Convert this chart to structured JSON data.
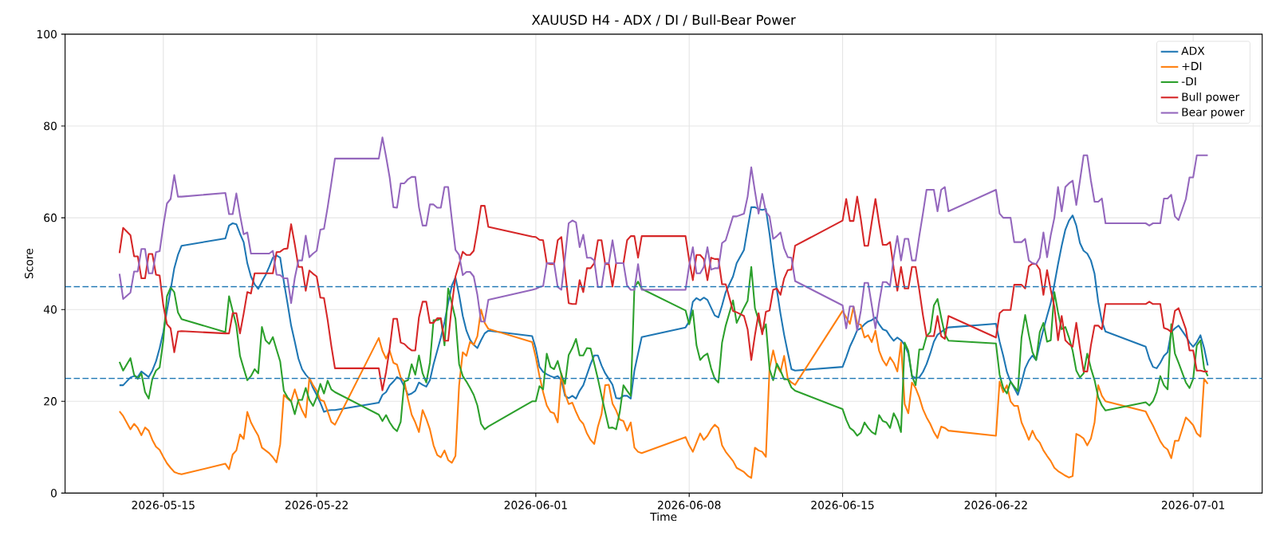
{
  "chart_data": {
    "type": "line",
    "title": "XAUUSD H4 - ADX / DI / Bull-Bear Power",
    "xlabel": "Time",
    "ylabel": "Score",
    "x": [
      "2026-05-13T00:00",
      "2026-05-13T04:00",
      "2026-05-13T12:00",
      "2026-05-13T16:00",
      "2026-05-13T20:00",
      "2026-05-14T00:00",
      "2026-05-14T04:00",
      "2026-05-14T08:00",
      "2026-05-14T12:00",
      "2026-05-14T16:00",
      "2026-05-14T20:00",
      "2026-05-15T00:00",
      "2026-05-15T04:00",
      "2026-05-15T08:00",
      "2026-05-15T12:00",
      "2026-05-15T16:00",
      "2026-05-15T20:00",
      "2026-05-17T20:00",
      "2026-05-18T00:00",
      "2026-05-18T04:00",
      "2026-05-18T08:00",
      "2026-05-18T12:00",
      "2026-05-18T16:00",
      "2026-05-18T20:00",
      "2026-05-19T00:00",
      "2026-05-19T04:00",
      "2026-05-19T08:00",
      "2026-05-19T12:00",
      "2026-05-19T16:00",
      "2026-05-19T20:00",
      "2026-05-20T00:00",
      "2026-05-20T04:00",
      "2026-05-20T08:00",
      "2026-05-20T12:00",
      "2026-05-20T16:00",
      "2026-05-20T20:00",
      "2026-05-21T00:00",
      "2026-05-21T04:00",
      "2026-05-21T08:00",
      "2026-05-21T12:00",
      "2026-05-21T16:00",
      "2026-05-21T20:00",
      "2026-05-22T00:00",
      "2026-05-22T04:00",
      "2026-05-22T08:00",
      "2026-05-22T12:00",
      "2026-05-22T16:00",
      "2026-05-22T20:00",
      "2026-05-24T20:00",
      "2026-05-25T00:00",
      "2026-05-25T04:00",
      "2026-05-25T08:00",
      "2026-05-25T12:00",
      "2026-05-25T16:00",
      "2026-05-25T20:00",
      "2026-05-26T00:00",
      "2026-05-26T04:00",
      "2026-05-26T08:00",
      "2026-05-26T12:00",
      "2026-05-26T16:00",
      "2026-05-26T20:00",
      "2026-05-27T00:00",
      "2026-05-27T04:00",
      "2026-05-27T08:00",
      "2026-05-27T12:00",
      "2026-05-27T16:00",
      "2026-05-27T20:00",
      "2026-05-28T00:00",
      "2026-05-28T04:00",
      "2026-05-28T08:00",
      "2026-05-28T12:00",
      "2026-05-28T16:00",
      "2026-05-28T20:00",
      "2026-05-29T00:00",
      "2026-05-29T04:00",
      "2026-05-29T08:00",
      "2026-05-29T12:00",
      "2026-05-29T16:00",
      "2026-05-29T20:00",
      "2026-05-31T20:00",
      "2026-06-01T00:00",
      "2026-06-01T04:00",
      "2026-06-01T08:00",
      "2026-06-01T12:00",
      "2026-06-01T16:00",
      "2026-06-01T20:00",
      "2026-06-02T00:00",
      "2026-06-02T04:00",
      "2026-06-02T08:00",
      "2026-06-02T12:00",
      "2026-06-02T16:00",
      "2026-06-02T20:00",
      "2026-06-03T00:00",
      "2026-06-03T04:00",
      "2026-06-03T08:00",
      "2026-06-03T12:00",
      "2026-06-03T16:00",
      "2026-06-03T20:00",
      "2026-06-04T00:00",
      "2026-06-04T04:00",
      "2026-06-04T08:00",
      "2026-06-04T12:00",
      "2026-06-04T16:00",
      "2026-06-04T20:00",
      "2026-06-05T00:00",
      "2026-06-05T04:00",
      "2026-06-05T08:00",
      "2026-06-05T12:00",
      "2026-06-05T16:00",
      "2026-06-05T20:00",
      "2026-06-07T20:00",
      "2026-06-08T00:00",
      "2026-06-08T04:00",
      "2026-06-08T08:00",
      "2026-06-08T12:00",
      "2026-06-08T16:00",
      "2026-06-08T20:00",
      "2026-06-09T00:00",
      "2026-06-09T04:00",
      "2026-06-09T08:00",
      "2026-06-09T12:00",
      "2026-06-09T16:00",
      "2026-06-10T00:00",
      "2026-06-10T04:00",
      "2026-06-10T12:00",
      "2026-06-10T16:00",
      "2026-06-10T20:00",
      "2026-06-11T00:00",
      "2026-06-11T04:00",
      "2026-06-11T08:00",
      "2026-06-11T12:00",
      "2026-06-11T16:00",
      "2026-06-11T20:00",
      "2026-06-12T00:00",
      "2026-06-12T04:00",
      "2026-06-12T08:00",
      "2026-06-12T12:00",
      "2026-06-12T16:00",
      "2026-06-12T20:00",
      "2026-06-15T00:00",
      "2026-06-15T04:00",
      "2026-06-15T08:00",
      "2026-06-15T12:00",
      "2026-06-15T16:00",
      "2026-06-15T20:00",
      "2026-06-16T00:00",
      "2026-06-16T04:00",
      "2026-06-16T08:00",
      "2026-06-16T12:00",
      "2026-06-16T16:00",
      "2026-06-16T20:00",
      "2026-06-17T00:00",
      "2026-06-17T04:00",
      "2026-06-17T08:00",
      "2026-06-17T12:00",
      "2026-06-17T16:00",
      "2026-06-17T20:00",
      "2026-06-18T00:00",
      "2026-06-18T04:00",
      "2026-06-18T08:00",
      "2026-06-18T12:00",
      "2026-06-18T16:00",
      "2026-06-18T20:00",
      "2026-06-19T00:00",
      "2026-06-19T04:00",
      "2026-06-19T08:00",
      "2026-06-19T12:00",
      "2026-06-19T16:00",
      "2026-06-19T20:00",
      "2026-06-22T00:00",
      "2026-06-22T04:00",
      "2026-06-22T08:00",
      "2026-06-22T12:00",
      "2026-06-22T16:00",
      "2026-06-22T20:00",
      "2026-06-23T00:00",
      "2026-06-23T04:00",
      "2026-06-23T08:00",
      "2026-06-23T12:00",
      "2026-06-23T16:00",
      "2026-06-23T20:00",
      "2026-06-24T00:00",
      "2026-06-24T04:00",
      "2026-06-24T08:00",
      "2026-06-24T12:00",
      "2026-06-24T16:00",
      "2026-06-24T20:00",
      "2026-06-25T00:00",
      "2026-06-25T04:00",
      "2026-06-25T08:00",
      "2026-06-25T12:00",
      "2026-06-25T16:00",
      "2026-06-25T20:00",
      "2026-06-26T00:00",
      "2026-06-26T04:00",
      "2026-06-26T08:00",
      "2026-06-26T12:00",
      "2026-06-26T16:00",
      "2026-06-26T20:00",
      "2026-06-27T00:00",
      "2026-06-28T20:00",
      "2026-06-29T00:00",
      "2026-06-29T04:00",
      "2026-06-29T08:00",
      "2026-06-29T12:00",
      "2026-06-29T16:00",
      "2026-06-29T20:00",
      "2026-06-30T00:00",
      "2026-06-30T04:00",
      "2026-06-30T08:00",
      "2026-06-30T16:00",
      "2026-06-30T20:00",
      "2026-07-01T00:00",
      "2026-07-01T04:00",
      "2026-07-01T08:00",
      "2026-07-01T12:00",
      "2026-07-01T16:00"
    ],
    "series": [
      {
        "name": "ADX",
        "color": "#1f77b4",
        "values": [
          23.5,
          23.5,
          25.2,
          25.5,
          25.3,
          26.5,
          25.9,
          25.3,
          26.7,
          28.7,
          31.6,
          35.1,
          39.7,
          44.3,
          49.0,
          51.9,
          53.9,
          55.5,
          58.3,
          58.8,
          58.6,
          56.5,
          54.7,
          50.1,
          47.2,
          45.5,
          44.5,
          46.1,
          47.5,
          49.3,
          51.3,
          51.8,
          51.3,
          46.1,
          41.4,
          36.5,
          33.0,
          29.3,
          27.0,
          25.8,
          24.9,
          22.9,
          21.4,
          19.7,
          17.7,
          18.0,
          18.1,
          18.1,
          19.7,
          21.4,
          22.0,
          23.5,
          24.3,
          25.3,
          24.8,
          23.2,
          21.4,
          21.7,
          22.3,
          24.1,
          23.6,
          23.2,
          24.6,
          28.1,
          31.0,
          33.9,
          37.3,
          41.4,
          45.2,
          47.0,
          43.2,
          38.6,
          35.4,
          33.4,
          32.3,
          31.6,
          33.3,
          34.8,
          35.4,
          34.2,
          31.5,
          27.5,
          26.4,
          25.9,
          25.5,
          25.2,
          25.5,
          24.6,
          21.2,
          20.7,
          21.2,
          20.6,
          22.3,
          23.5,
          25.8,
          28.1,
          30.0,
          30.0,
          27.8,
          26.1,
          24.9,
          23.6,
          20.7,
          20.6,
          21.2,
          21.2,
          20.6,
          26.7,
          30.4,
          34.0,
          36.1,
          37.4,
          41.7,
          42.5,
          42.0,
          42.6,
          42.1,
          40.4,
          38.7,
          38.3,
          40.9,
          43.8,
          47.2,
          50.1,
          53.0,
          57.7,
          62.3,
          62.3,
          61.9,
          61.7,
          61.9,
          56.5,
          50.1,
          44.3,
          39.1,
          34.5,
          30.6,
          27.0,
          26.7,
          27.5,
          29.6,
          31.9,
          33.6,
          35.5,
          35.9,
          36.8,
          37.4,
          37.7,
          38.3,
          36.8,
          35.7,
          35.4,
          34.2,
          33.2,
          33.9,
          33.3,
          32.3,
          30.4,
          25.5,
          25.1,
          25.2,
          26.4,
          28.1,
          30.4,
          33.0,
          34.5,
          35.1,
          35.7,
          36.1,
          36.9,
          33.0,
          29.9,
          26.4,
          24.3,
          22.9,
          21.4,
          24.1,
          27.2,
          28.9,
          30.0,
          29.0,
          32.5,
          35.7,
          38.6,
          41.4,
          45.5,
          49.9,
          53.9,
          57.4,
          59.4,
          60.5,
          58.3,
          54.5,
          52.8,
          52.2,
          50.7,
          47.8,
          41.7,
          37.4,
          35.2,
          31.9,
          29.3,
          27.5,
          27.2,
          28.4,
          29.9,
          30.7,
          35.1,
          35.9,
          36.5,
          34.2,
          32.8,
          31.9,
          32.9,
          34.4,
          31.6,
          27.8
        ]
      },
      {
        "name": "+DI",
        "color": "#ff7f0e",
        "values": [
          17.8,
          16.8,
          13.9,
          15.1,
          14.2,
          12.6,
          14.3,
          13.6,
          11.6,
          10.1,
          9.4,
          7.9,
          6.5,
          5.5,
          4.6,
          4.3,
          4.1,
          6.4,
          5.2,
          8.4,
          9.3,
          12.8,
          11.8,
          17.7,
          15.4,
          13.9,
          12.5,
          9.9,
          9.3,
          8.7,
          7.8,
          6.7,
          10.6,
          21.4,
          20.6,
          20.0,
          22.6,
          20.0,
          18.0,
          16.5,
          25.1,
          23.5,
          22.3,
          20.3,
          20.0,
          17.8,
          15.5,
          14.9,
          33.8,
          31.0,
          29.3,
          31.0,
          28.4,
          28.0,
          25.2,
          24.3,
          20.5,
          17.1,
          15.4,
          13.3,
          18.1,
          16.2,
          13.9,
          10.4,
          8.3,
          7.8,
          9.3,
          7.2,
          6.6,
          8.1,
          23.5,
          30.7,
          29.9,
          33.0,
          32.3,
          34.2,
          40.0,
          37.1,
          35.8,
          32.9,
          29.6,
          25.5,
          22.0,
          19.1,
          17.7,
          17.4,
          15.4,
          26.1,
          21.7,
          19.4,
          19.7,
          17.7,
          16.0,
          15.1,
          13.0,
          11.6,
          10.7,
          14.5,
          17.2,
          23.5,
          23.6,
          19.5,
          18.0,
          16.0,
          15.7,
          13.6,
          15.4,
          9.9,
          9.0,
          8.7,
          12.2,
          10.4,
          9.0,
          11.0,
          13.0,
          11.6,
          12.5,
          13.9,
          14.9,
          14.2,
          10.4,
          9.0,
          7.0,
          5.5,
          4.6,
          3.8,
          3.3,
          9.9,
          9.3,
          9.0,
          7.9,
          27.2,
          31.1,
          27.7,
          26.4,
          29.9,
          24.9,
          24.1,
          23.6,
          39.7,
          38.3,
          36.9,
          40.6,
          36.9,
          36.7,
          33.9,
          34.4,
          32.9,
          35.4,
          31.0,
          29.0,
          27.8,
          29.6,
          28.4,
          26.5,
          32.8,
          19.4,
          17.4,
          24.1,
          22.9,
          20.9,
          18.3,
          16.5,
          15.1,
          13.3,
          12.0,
          14.5,
          14.2,
          13.6,
          12.5,
          24.3,
          22.0,
          23.5,
          20.0,
          19.0,
          19.0,
          15.4,
          13.6,
          11.6,
          13.6,
          11.9,
          11.0,
          9.3,
          8.1,
          7.0,
          5.5,
          4.8,
          4.3,
          3.8,
          3.4,
          3.7,
          12.9,
          12.5,
          11.9,
          10.4,
          11.9,
          15.4,
          23.5,
          21.2,
          20.0,
          17.8,
          16.2,
          14.7,
          13.0,
          11.3,
          10.1,
          9.5,
          7.6,
          11.4,
          11.4,
          16.5,
          15.7,
          14.8,
          13.0,
          12.3,
          24.9,
          23.8
        ]
      },
      {
        "name": "-DI",
        "color": "#2ca02c",
        "values": [
          28.6,
          26.7,
          29.4,
          25.8,
          24.9,
          26.1,
          22.0,
          20.6,
          24.9,
          26.7,
          27.4,
          33.3,
          42.9,
          44.8,
          43.8,
          39.4,
          37.9,
          35.1,
          42.9,
          39.7,
          36.5,
          29.9,
          27.2,
          24.6,
          25.5,
          27.0,
          26.1,
          36.2,
          33.3,
          32.5,
          34.0,
          31.3,
          28.7,
          22.3,
          20.9,
          20.0,
          17.2,
          20.3,
          20.3,
          22.9,
          20.3,
          19.0,
          20.9,
          23.8,
          21.7,
          24.5,
          22.6,
          22.0,
          17.1,
          15.7,
          17.0,
          15.4,
          14.2,
          13.5,
          15.5,
          24.3,
          24.6,
          28.1,
          25.8,
          30.0,
          26.1,
          24.1,
          28.4,
          37.7,
          37.7,
          38.0,
          32.2,
          44.6,
          41.4,
          38.0,
          28.1,
          25.5,
          24.3,
          22.9,
          21.4,
          19.1,
          15.1,
          13.9,
          14.5,
          20.0,
          20.0,
          23.3,
          22.6,
          30.4,
          27.5,
          27.0,
          28.8,
          25.8,
          23.8,
          30.1,
          31.6,
          33.6,
          30.0,
          30.0,
          31.6,
          31.5,
          28.2,
          24.9,
          21.2,
          17.7,
          14.2,
          14.3,
          13.9,
          17.7,
          23.5,
          22.3,
          21.2,
          44.8,
          46.1,
          44.5,
          39.8,
          36.8,
          39.8,
          32.2,
          29.0,
          29.9,
          30.4,
          27.2,
          24.9,
          24.1,
          32.8,
          36.5,
          42.0,
          37.1,
          40.4,
          41.9,
          49.3,
          40.3,
          37.7,
          35.1,
          36.8,
          27.0,
          24.6,
          28.2,
          26.7,
          24.8,
          24.8,
          23.0,
          22.3,
          18.3,
          16.0,
          14.2,
          13.6,
          12.5,
          13.2,
          15.4,
          14.2,
          13.3,
          12.8,
          17.0,
          15.7,
          15.4,
          14.2,
          17.4,
          15.9,
          13.3,
          32.8,
          31.0,
          25.5,
          23.5,
          31.3,
          31.3,
          34.2,
          35.1,
          40.9,
          42.3,
          38.3,
          34.6,
          33.2,
          32.6,
          25.8,
          22.9,
          21.7,
          24.3,
          23.2,
          22.2,
          33.9,
          38.8,
          34.5,
          30.7,
          29.0,
          35.1,
          37.1,
          33.0,
          33.3,
          43.8,
          39.4,
          35.7,
          36.2,
          33.9,
          31.0,
          26.7,
          25.2,
          26.1,
          30.4,
          27.2,
          24.6,
          20.9,
          19.1,
          18.0,
          19.8,
          19.1,
          20.0,
          22.0,
          25.5,
          23.5,
          22.6,
          36.8,
          30.4,
          28.4,
          24.1,
          22.9,
          24.9,
          32.2,
          33.3,
          27.2,
          25.5
        ]
      },
      {
        "name": "Bull power",
        "color": "#d62728",
        "values": [
          52.3,
          57.8,
          56.2,
          51.6,
          51.6,
          46.8,
          46.8,
          52.1,
          52.1,
          47.6,
          47.4,
          40.9,
          36.8,
          35.9,
          30.7,
          35.2,
          35.3,
          34.8,
          34.8,
          39.2,
          39.2,
          34.8,
          39.1,
          43.8,
          43.5,
          47.9,
          47.9,
          47.9,
          47.9,
          47.9,
          47.9,
          52.5,
          52.6,
          53.2,
          53.3,
          58.6,
          54.2,
          49.3,
          49.3,
          44.1,
          48.5,
          47.8,
          47.2,
          42.6,
          42.5,
          37.7,
          32.1,
          27.2,
          27.2,
          22.4,
          26.4,
          31.6,
          38.0,
          38.0,
          32.8,
          32.5,
          31.7,
          31.1,
          31.1,
          38.3,
          41.7,
          41.7,
          37.1,
          37.1,
          38.1,
          38.1,
          33.2,
          33.2,
          40.9,
          47.2,
          49.9,
          52.6,
          51.9,
          51.9,
          52.8,
          57.4,
          62.6,
          62.6,
          58.0,
          55.9,
          55.8,
          55.2,
          55.1,
          50.1,
          49.9,
          49.9,
          55.1,
          55.8,
          48.4,
          41.4,
          41.2,
          41.2,
          46.4,
          43.8,
          49.0,
          49.0,
          50.1,
          55.1,
          55.1,
          49.9,
          49.9,
          45.0,
          50.1,
          50.1,
          50.1,
          55.1,
          56.0,
          56.0,
          51.3,
          56.0,
          56.0,
          50.7,
          46.4,
          51.9,
          51.9,
          51.0,
          46.4,
          51.3,
          51.0,
          51.0,
          45.5,
          45.5,
          39.7,
          39.4,
          38.6,
          35.7,
          29.0,
          34.4,
          39.2,
          34.6,
          39.5,
          39.8,
          44.3,
          44.6,
          43.2,
          46.8,
          48.6,
          48.7,
          53.9,
          59.4,
          64.1,
          59.3,
          59.3,
          64.6,
          59.7,
          53.9,
          53.9,
          59.1,
          64.1,
          58.8,
          54.1,
          54.1,
          54.7,
          49.0,
          44.1,
          49.3,
          44.6,
          44.6,
          49.3,
          49.3,
          44.3,
          38.8,
          34.2,
          34.2,
          34.2,
          38.6,
          34.2,
          33.6,
          38.6,
          33.9,
          39.2,
          39.9,
          39.9,
          39.9,
          45.4,
          45.4,
          45.4,
          44.6,
          49.4,
          50.0,
          49.9,
          48.7,
          43.2,
          48.6,
          44.3,
          40.6,
          33.3,
          38.6,
          33.3,
          32.5,
          31.9,
          37.1,
          31.6,
          26.5,
          26.5,
          32.2,
          36.5,
          36.5,
          35.7,
          41.2,
          41.2,
          41.7,
          41.2,
          41.2,
          41.2,
          36.0,
          35.7,
          35.1,
          39.7,
          40.3,
          35.7,
          31.1,
          31.1,
          26.7,
          26.7,
          26.5,
          26.5
        ]
      },
      {
        "name": "Bear power",
        "color": "#9467bd",
        "values": [
          47.8,
          42.3,
          43.7,
          48.3,
          48.3,
          53.2,
          53.2,
          47.9,
          47.9,
          52.5,
          52.7,
          58.3,
          63.1,
          64.1,
          69.3,
          64.6,
          64.6,
          65.4,
          60.8,
          60.8,
          65.3,
          60.6,
          56.4,
          56.8,
          52.2,
          52.2,
          52.2,
          52.2,
          52.2,
          52.2,
          52.8,
          47.6,
          47.5,
          46.8,
          46.8,
          41.4,
          46.9,
          50.7,
          50.7,
          56.1,
          51.4,
          52.2,
          52.8,
          57.4,
          57.6,
          62.3,
          67.5,
          72.9,
          72.9,
          77.5,
          73.3,
          68.7,
          62.3,
          62.2,
          67.5,
          67.5,
          68.4,
          68.9,
          68.9,
          62.3,
          58.3,
          58.3,
          62.9,
          62.9,
          62.2,
          62.2,
          66.7,
          66.7,
          59.7,
          53.0,
          51.9,
          47.5,
          48.2,
          48.2,
          47.2,
          43.2,
          37.4,
          37.4,
          42.1,
          44.3,
          44.5,
          44.9,
          45.1,
          50.1,
          50.1,
          50.1,
          44.9,
          44.3,
          51.3,
          58.8,
          59.4,
          59.0,
          53.6,
          56.3,
          51.3,
          51.3,
          50.7,
          44.9,
          44.9,
          50.1,
          50.1,
          55.1,
          50.1,
          50.1,
          50.1,
          45.2,
          44.3,
          44.3,
          49.9,
          44.3,
          44.3,
          49.6,
          53.6,
          47.9,
          47.9,
          49.3,
          53.6,
          48.7,
          49.0,
          49.0,
          54.5,
          55.1,
          60.3,
          60.3,
          60.9,
          64.6,
          71.0,
          65.8,
          60.9,
          65.2,
          61.3,
          60.3,
          55.4,
          56.0,
          56.8,
          53.3,
          51.4,
          51.3,
          46.2,
          40.9,
          35.9,
          40.7,
          40.7,
          35.4,
          39.7,
          45.8,
          45.8,
          40.9,
          35.9,
          41.4,
          46.0,
          46.0,
          45.2,
          51.3,
          56.0,
          50.7,
          55.4,
          55.4,
          50.7,
          50.7,
          56.0,
          60.9,
          66.1,
          66.1,
          66.1,
          61.4,
          66.1,
          66.7,
          61.4,
          66.1,
          60.9,
          60.0,
          60.0,
          60.0,
          54.7,
          54.7,
          54.7,
          55.4,
          50.7,
          50.1,
          49.9,
          51.3,
          56.8,
          51.4,
          56.2,
          60.0,
          66.7,
          61.4,
          66.7,
          67.5,
          68.1,
          62.8,
          68.1,
          73.6,
          73.6,
          68.1,
          63.5,
          63.5,
          64.2,
          58.8,
          58.8,
          58.3,
          58.8,
          58.8,
          58.8,
          64.2,
          64.2,
          65.0,
          60.3,
          59.5,
          64.1,
          68.8,
          68.8,
          73.6,
          73.6,
          73.6,
          73.6
        ]
      }
    ],
    "xlim": [
      "2026-05-10T12:24",
      "2026-07-04T03:36"
    ],
    "xticks": [
      "2026-05-15",
      "2026-05-22",
      "2026-06-01",
      "2026-06-08",
      "2026-06-15",
      "2026-06-22",
      "2026-07-01"
    ],
    "ylim": [
      0,
      100
    ],
    "yticks": [
      0,
      20,
      40,
      60,
      80,
      100
    ],
    "ref_lines": [
      {
        "axis": "y",
        "value": 45,
        "color": "#1f77b4",
        "line_style": "dashed"
      },
      {
        "axis": "y",
        "value": 25,
        "color": "#1f77b4",
        "line_style": "dashed"
      }
    ],
    "grid": true,
    "legend": "top right"
  }
}
